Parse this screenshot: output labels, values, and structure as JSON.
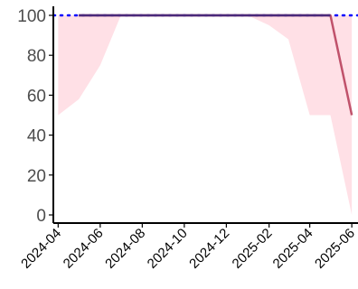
{
  "chart_data": {
    "type": "line",
    "title": "",
    "xlabel": "",
    "ylabel": "",
    "ylim": [
      0,
      100
    ],
    "xlim": [
      "2024-03-25",
      "2025-06-10"
    ],
    "y_ticks": [
      "0",
      "20",
      "40",
      "60",
      "80",
      "100"
    ],
    "x_ticks": [
      "2024-04",
      "2024-06",
      "2024-08",
      "2024-10",
      "2024-12",
      "2025-02",
      "2025-04",
      "2025-06"
    ],
    "x_tick_dates": [
      "2024-04-01",
      "2024-06-01",
      "2024-08-01",
      "2024-10-01",
      "2024-12-01",
      "2025-02-01",
      "2025-04-01",
      "2025-06-01"
    ],
    "grid": false,
    "reference_line": {
      "y": 100,
      "style": "dotted",
      "color": "#0000ff"
    },
    "series": [
      {
        "color": "#c0526b",
        "points": [
          {
            "x": "2024-05-01",
            "y": 100
          },
          {
            "x": "2025-05-01",
            "y": 100
          },
          {
            "x": "2025-06-01",
            "y": 50
          }
        ]
      }
    ],
    "band": {
      "color": "#ffe0e6",
      "upper": [
        {
          "x": "2024-04-01",
          "y": 100
        },
        {
          "x": "2025-02-01",
          "y": 100
        },
        {
          "x": "2025-06-01",
          "y": 100
        }
      ],
      "lower": [
        {
          "x": "2024-04-01",
          "y": 50
        },
        {
          "x": "2024-05-01",
          "y": 58
        },
        {
          "x": "2024-06-01",
          "y": 75
        },
        {
          "x": "2024-07-01",
          "y": 100
        },
        {
          "x": "2025-01-01",
          "y": 100
        },
        {
          "x": "2025-02-01",
          "y": 95
        },
        {
          "x": "2025-03-01",
          "y": 88
        },
        {
          "x": "2025-04-01",
          "y": 50
        },
        {
          "x": "2025-05-01",
          "y": 50
        },
        {
          "x": "2025-06-01",
          "y": 0
        }
      ]
    }
  }
}
